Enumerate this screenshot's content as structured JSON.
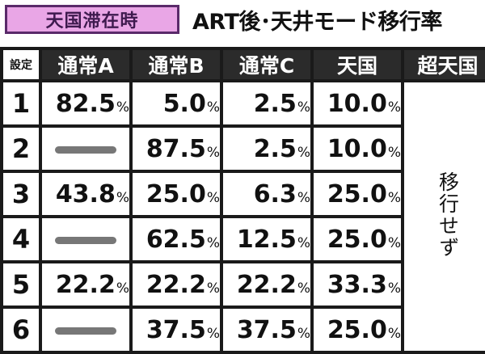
{
  "badge": "天国滞在時",
  "title": "ART後･天井モード移行率",
  "table": {
    "headers": [
      "設定",
      "通常A",
      "通常B",
      "通常C",
      "天国",
      "超天国"
    ],
    "rows": [
      {
        "setting": "1",
        "normal_a": "82.5",
        "normal_b": "5.0",
        "normal_c": "2.5",
        "heaven": "10.0"
      },
      {
        "setting": "2",
        "normal_a": null,
        "normal_b": "87.5",
        "normal_c": "2.5",
        "heaven": "10.0"
      },
      {
        "setting": "3",
        "normal_a": "43.8",
        "normal_b": "25.0",
        "normal_c": "6.3",
        "heaven": "25.0"
      },
      {
        "setting": "4",
        "normal_a": null,
        "normal_b": "62.5",
        "normal_c": "12.5",
        "heaven": "25.0"
      },
      {
        "setting": "5",
        "normal_a": "22.2",
        "normal_b": "22.2",
        "normal_c": "22.2",
        "heaven": "33.3"
      },
      {
        "setting": "6",
        "normal_a": null,
        "normal_b": "37.5",
        "normal_c": "37.5",
        "heaven": "25.0"
      }
    ],
    "percent_sign": "%",
    "super_heaven_note": "移行せず"
  },
  "colors": {
    "badge_bg": "#e9a6e6",
    "badge_border": "#5a2a6a",
    "header_bg": "#2b2b2b",
    "dash": "#777777"
  }
}
